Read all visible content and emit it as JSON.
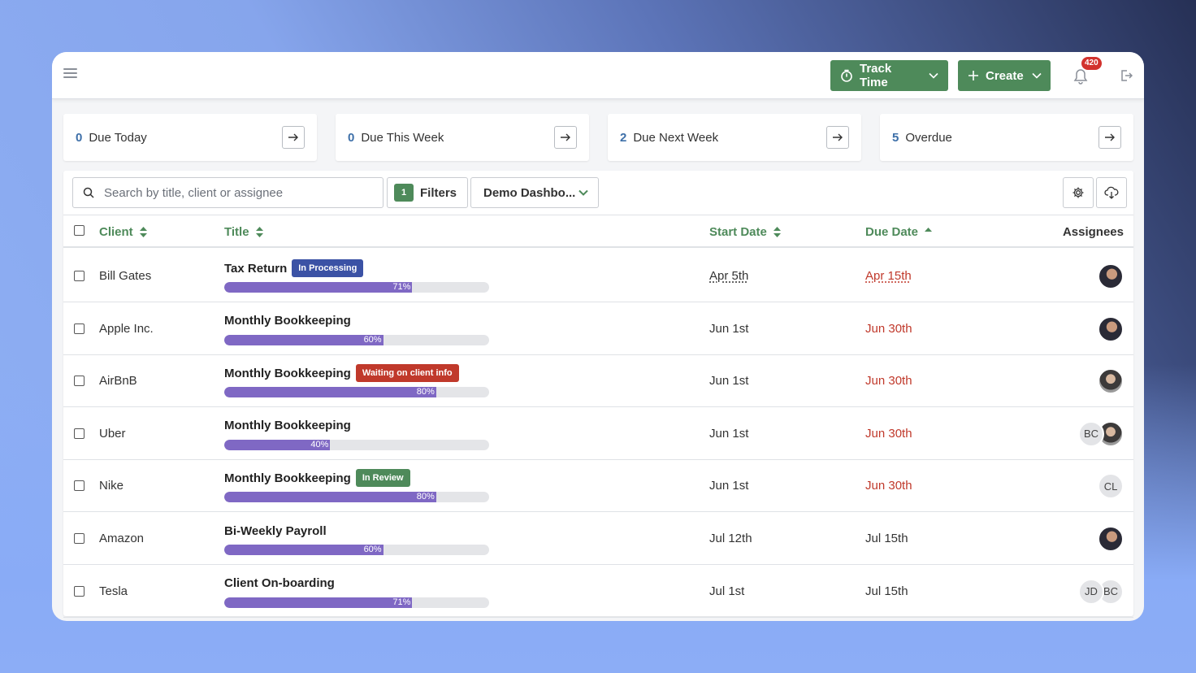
{
  "topbar": {
    "track_time_label": "Track Time",
    "create_label": "Create",
    "notification_count": "420"
  },
  "cards": [
    {
      "count": "0",
      "label": "Due Today"
    },
    {
      "count": "0",
      "label": "Due This Week"
    },
    {
      "count": "2",
      "label": "Due Next Week"
    },
    {
      "count": "5",
      "label": "Overdue"
    }
  ],
  "toolbar": {
    "search_placeholder": "Search by title, client or assignee",
    "filter_count": "1",
    "filters_label": "Filters",
    "dashboard_label": "Demo Dashbo..."
  },
  "columns": {
    "client": "Client",
    "title": "Title",
    "start_date": "Start Date",
    "due_date": "Due Date",
    "assignees": "Assignees"
  },
  "colors": {
    "accent": "#4e8a5a",
    "progress": "#7f68c4",
    "overdue": "#c0392b",
    "status_processing": "#3b52a5",
    "status_waiting": "#c0392b",
    "status_review": "#4e8a5a"
  },
  "rows": [
    {
      "client": "Bill Gates",
      "title": "Tax Return",
      "status": "In Processing",
      "progress": 71,
      "progress_label": "71%",
      "start": "Apr 5th",
      "due": "Apr 15th",
      "assignees": [
        {
          "type": "photo"
        }
      ]
    },
    {
      "client": "Apple Inc.",
      "title": "Monthly Bookkeeping",
      "status": "",
      "progress": 60,
      "progress_label": "60%",
      "start": "Jun 1st",
      "due": "Jun 30th",
      "assignees": [
        {
          "type": "photo"
        }
      ]
    },
    {
      "client": "AirBnB",
      "title": "Monthly Bookkeeping",
      "status": "Waiting on client info",
      "progress": 80,
      "progress_label": "80%",
      "start": "Jun 1st",
      "due": "Jun 30th",
      "assignees": [
        {
          "type": "photo2"
        }
      ]
    },
    {
      "client": "Uber",
      "title": "Monthly Bookkeeping",
      "status": "",
      "progress": 40,
      "progress_label": "40%",
      "start": "Jun 1st",
      "due": "Jun 30th",
      "assignees": [
        {
          "type": "photo2"
        },
        {
          "type": "initials",
          "text": "BC"
        }
      ]
    },
    {
      "client": "Nike",
      "title": "Monthly Bookkeeping",
      "status": "In Review",
      "progress": 80,
      "progress_label": "80%",
      "start": "Jun 1st",
      "due": "Jun 30th",
      "assignees": [
        {
          "type": "initials",
          "text": "CL"
        }
      ]
    },
    {
      "client": "Amazon",
      "title": "Bi-Weekly Payroll",
      "status": "",
      "progress": 60,
      "progress_label": "60%",
      "start": "Jul 12th",
      "due": "Jul 15th",
      "assignees": [
        {
          "type": "photo"
        }
      ]
    },
    {
      "client": "Tesla",
      "title": "Client On-boarding",
      "status": "",
      "progress": 71,
      "progress_label": "71%",
      "start": "Jul 1st",
      "due": "Jul 15th",
      "assignees": [
        {
          "type": "initials",
          "text": "BC"
        },
        {
          "type": "initials",
          "text": "JD"
        }
      ]
    }
  ]
}
